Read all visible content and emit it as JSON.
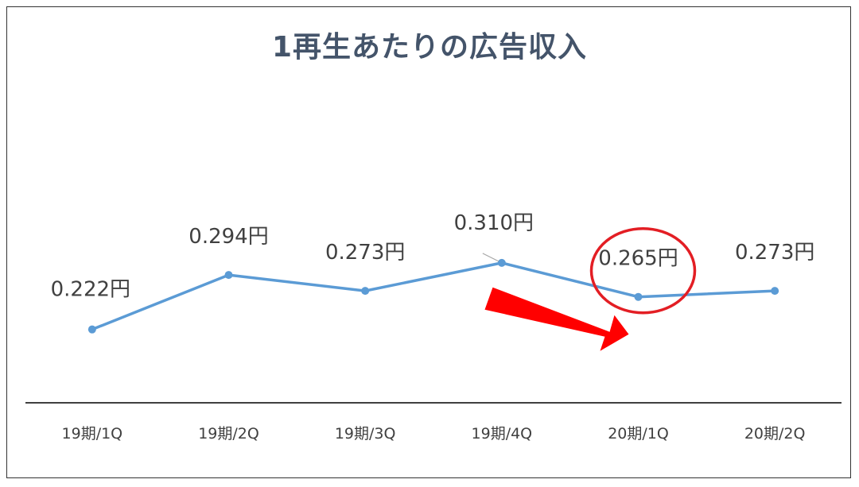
{
  "chart_data": {
    "type": "line",
    "title": "1再生あたりの広告収入",
    "categories": [
      "19期/1Q",
      "19期/2Q",
      "19期/3Q",
      "19期/4Q",
      "20期/1Q",
      "20期/2Q"
    ],
    "values": [
      0.222,
      0.294,
      0.273,
      0.31,
      0.265,
      0.273
    ],
    "data_labels": [
      "0.222円",
      "0.294円",
      "0.273円",
      "0.310円",
      "0.265円",
      "0.273円"
    ],
    "ylim": [
      0,
      0.5
    ],
    "grid": false,
    "legend": "none",
    "line_color": "#5b9bd5",
    "annotations": [
      {
        "kind": "circle",
        "target_index": 4,
        "color": "#e31e24"
      },
      {
        "kind": "arrow",
        "direction": "down-right",
        "color": "#ff0000"
      }
    ]
  }
}
